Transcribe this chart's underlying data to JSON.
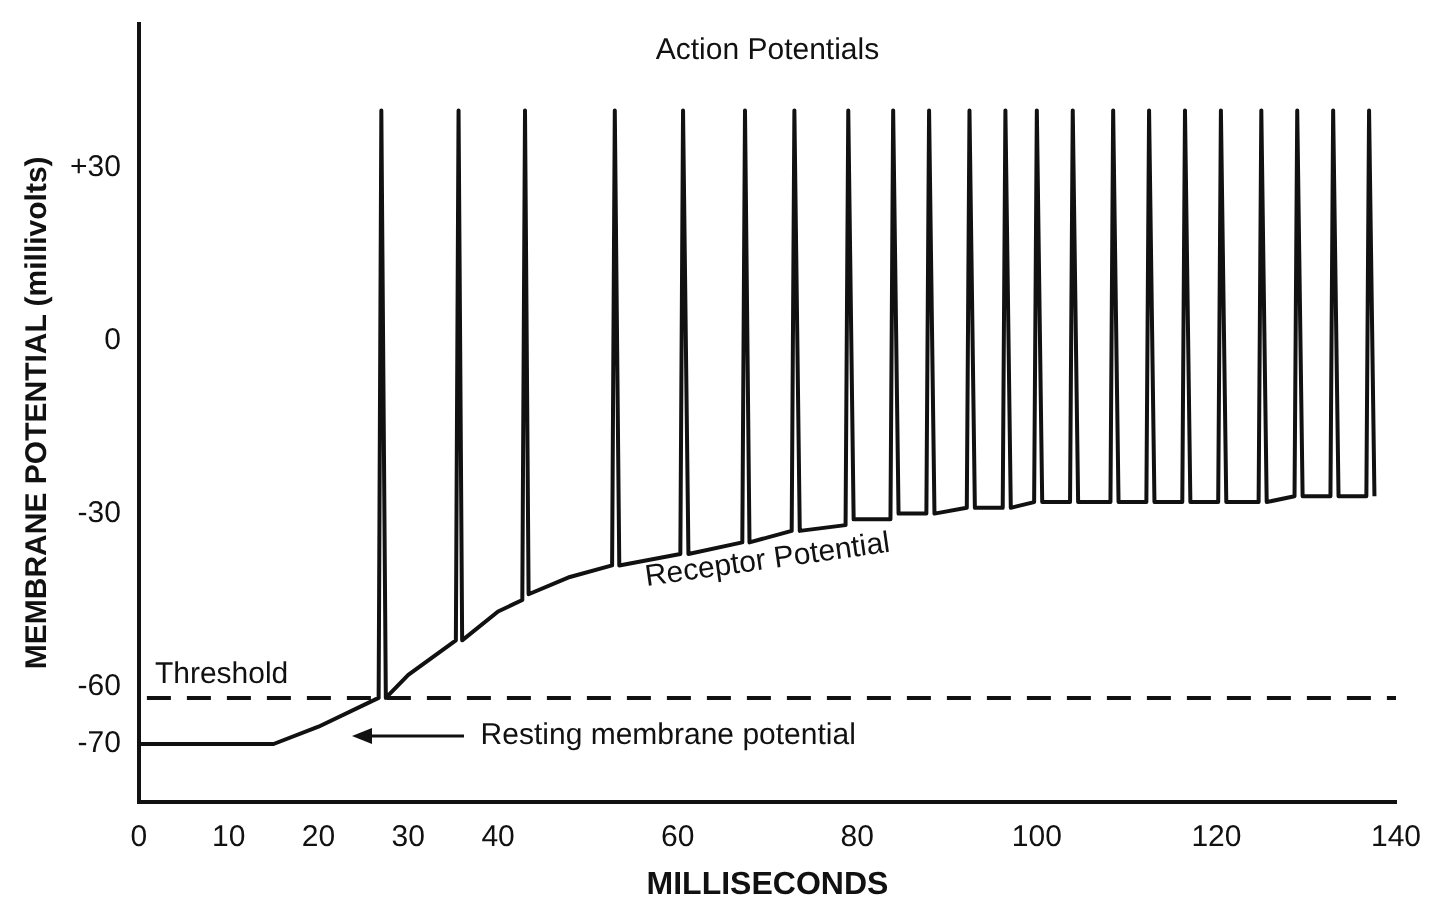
{
  "chart_data": {
    "type": "line",
    "xlabel": "MILLISECONDS",
    "ylabel": "MEMBRANE POTENTIAL (millivolts)",
    "xlim": [
      0,
      140
    ],
    "xticks": [
      0,
      10,
      20,
      30,
      40,
      60,
      80,
      100,
      120,
      140
    ],
    "ylim": [
      -80,
      55
    ],
    "yticks": [
      {
        "value": 30,
        "label": "+30"
      },
      0,
      -30,
      -60,
      -70
    ],
    "grid": false,
    "legend": false,
    "marker": "none",
    "line_style": "solid",
    "series": [
      {
        "color": "#111111",
        "x": [
          0,
          15,
          20,
          26.7,
          27,
          27.5,
          30,
          35.3,
          35.6,
          36,
          40,
          42.7,
          43,
          43.4,
          48,
          52.7,
          53,
          53.5,
          60.3,
          60.6,
          61.2,
          67.2,
          67.5,
          68,
          72.7,
          73,
          73.6,
          78.7,
          79,
          79.6,
          83.7,
          84,
          84.6,
          87.7,
          88,
          88.6,
          92.2,
          92.5,
          93.1,
          96.2,
          96.5,
          97.1,
          99.7,
          100,
          100.6,
          103.7,
          104,
          104.6,
          108.2,
          108.5,
          109.1,
          112.2,
          112.5,
          113.1,
          116.2,
          116.5,
          117.1,
          120.2,
          120.5,
          121.1,
          124.7,
          125,
          125.6,
          128.7,
          129,
          129.6,
          132.7,
          133,
          133.6,
          136.7,
          137,
          137.6
        ],
        "values": [
          -70,
          -70,
          -67,
          -62,
          40,
          -62,
          -58,
          -52,
          40,
          -52,
          -47,
          -45,
          40,
          -44,
          -41,
          -39,
          40,
          -39,
          -37,
          40,
          -37,
          -35,
          40,
          -35,
          -33,
          40,
          -33,
          -32,
          40,
          -31,
          -31,
          40,
          -30,
          -30,
          40,
          -30,
          -29,
          40,
          -29,
          -29,
          40,
          -29,
          -28,
          40,
          -28,
          -28,
          40,
          -28,
          -28,
          40,
          -28,
          -28,
          40,
          -28,
          -28,
          40,
          -28,
          -28,
          40,
          -28,
          -28,
          40,
          -28,
          -27,
          40,
          -27,
          -27,
          40,
          -27,
          -27,
          40,
          -27
        ]
      }
    ],
    "ref_lines": [
      {
        "axis": "y",
        "value": -62,
        "label": "Threshold",
        "line_style": "dashed",
        "color": "#111111"
      }
    ],
    "annotations": [
      "Action Potentials",
      "Receptor Potential",
      "Resting membrane potential"
    ]
  }
}
